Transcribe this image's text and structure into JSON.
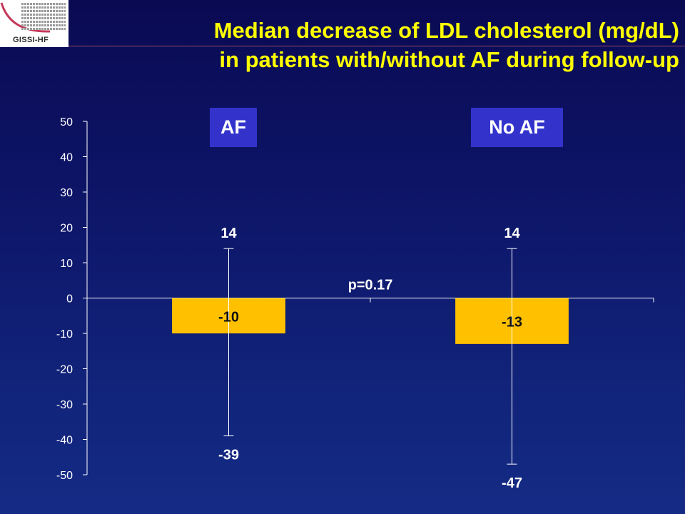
{
  "logo": {
    "text": "GISSI-HF"
  },
  "title": {
    "line1": "Median decrease of LDL cholesterol (mg/dL)",
    "line2": "in patients with/without AF during follow-up"
  },
  "colors": {
    "bar": "#ffc000",
    "label_box": "#3333cc",
    "title": "#ffff00",
    "axis": "#ffffff"
  },
  "chart_data": {
    "type": "bar",
    "categories": [
      "AF",
      "No AF"
    ],
    "values": [
      -10,
      -13
    ],
    "error_upper": [
      14,
      14
    ],
    "error_lower": [
      -39,
      -47
    ],
    "ylim": [
      -50,
      50
    ],
    "yticks": [
      50,
      40,
      30,
      20,
      10,
      0,
      -10,
      -20,
      -30,
      -40,
      -50
    ],
    "annotation": "p=0.17",
    "grid": false,
    "legend": "none"
  }
}
